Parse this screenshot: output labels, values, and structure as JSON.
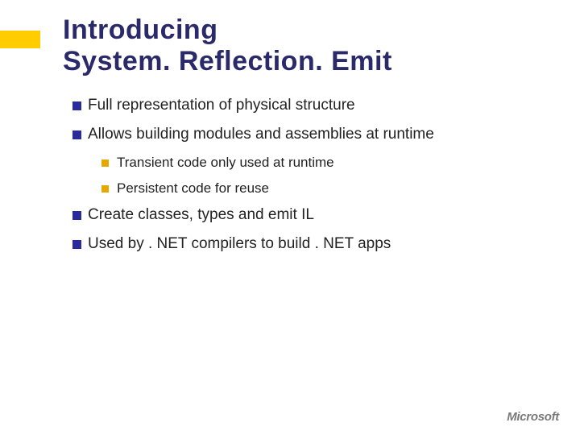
{
  "colors": {
    "accent_bar": "#ffcc00",
    "title_color": "#2a2a6a",
    "bullet_l1_color": "#2a2a9a",
    "bullet_l2_color": "#e6a800",
    "text_color": "#222222",
    "background": "#ffffff",
    "logo_color": "#7a7a7a"
  },
  "typography": {
    "title_fontsize": 34,
    "title_weight": 700,
    "l1_fontsize": 19,
    "l2_fontsize": 17,
    "font_family": "Arial"
  },
  "title_line1": "Introducing",
  "title_line2": "System. Reflection. Emit",
  "bullets": {
    "b1": "Full representation of physical structure",
    "b2": "Allows building modules and assemblies at runtime",
    "b2_children": {
      "c1": "Transient code only used at runtime",
      "c2": "Persistent code for reuse"
    },
    "b3": "Create classes, types and emit IL",
    "b4": "Used by . NET compilers to build . NET apps"
  },
  "logo_text": "Microsoft"
}
